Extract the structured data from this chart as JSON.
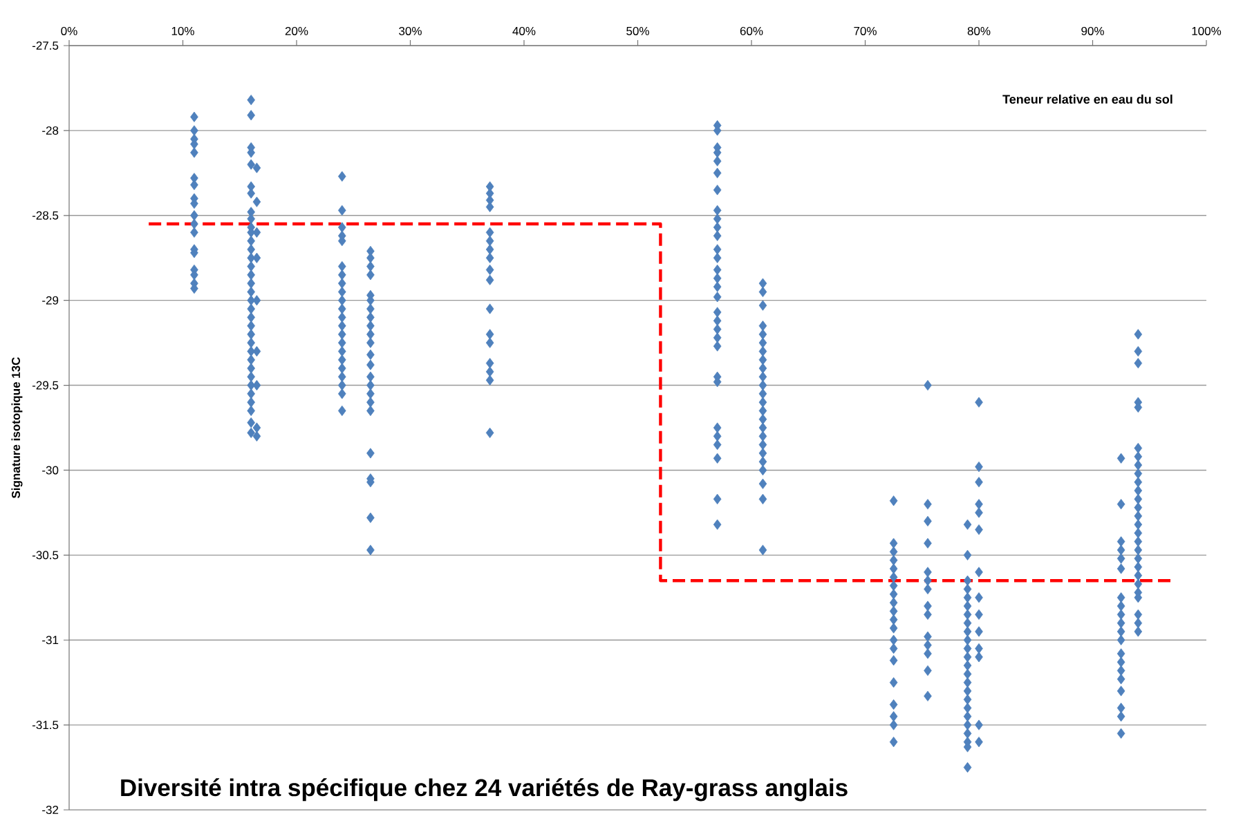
{
  "chart_data": {
    "type": "scatter",
    "title": "Diversité intra spécifique chez 24 variétés de Ray-grass anglais",
    "xlabel": "Teneur relative en eau du sol",
    "ylabel": "Signature isotopique 13C",
    "xlim": [
      0,
      100
    ],
    "xticks": [
      {
        "value": 0,
        "label": "0%"
      },
      {
        "value": 10,
        "label": "10%"
      },
      {
        "value": 20,
        "label": "20%"
      },
      {
        "value": 30,
        "label": "30%"
      },
      {
        "value": 40,
        "label": "40%"
      },
      {
        "value": 50,
        "label": "50%"
      },
      {
        "value": 60,
        "label": "60%"
      },
      {
        "value": 70,
        "label": "70%"
      },
      {
        "value": 80,
        "label": "80%"
      },
      {
        "value": 90,
        "label": "90%"
      },
      {
        "value": 100,
        "label": "100%"
      }
    ],
    "ylim": [
      -32,
      -27.5
    ],
    "yticks": [
      -32,
      -31.5,
      -31,
      -30.5,
      -30,
      -29.5,
      -29,
      -28.5,
      -28,
      -27.5
    ],
    "grid": "y",
    "marker": "diamond",
    "series": [
      {
        "color": "#4f81bd",
        "x": [
          11,
          11,
          11,
          11,
          11,
          11,
          11,
          11,
          11,
          11,
          11,
          11,
          11,
          11,
          11,
          11,
          11,
          11
        ],
        "values": [
          -27.92,
          -28.0,
          -28.05,
          -28.08,
          -28.13,
          -28.28,
          -28.32,
          -28.4,
          -28.43,
          -28.5,
          -28.55,
          -28.6,
          -28.7,
          -28.72,
          -28.82,
          -28.85,
          -28.9,
          -28.93
        ]
      },
      {
        "color": "#4f81bd",
        "x": [
          16,
          16,
          16,
          16,
          16,
          16,
          16,
          16,
          16,
          16,
          16,
          16,
          16,
          16,
          16,
          16,
          16,
          16,
          16,
          16,
          16,
          16,
          16,
          16,
          16,
          16,
          16,
          16,
          16,
          16,
          16,
          16,
          16,
          16
        ],
        "values": [
          -27.82,
          -27.91,
          -28.1,
          -28.13,
          -28.2,
          -28.33,
          -28.37,
          -28.48,
          -28.52,
          -28.57,
          -28.6,
          -28.65,
          -28.7,
          -28.75,
          -28.8,
          -28.85,
          -28.9,
          -28.95,
          -29.0,
          -29.05,
          -29.1,
          -29.15,
          -29.2,
          -29.25,
          -29.3,
          -29.35,
          -29.4,
          -29.45,
          -29.5,
          -29.55,
          -29.6,
          -29.65,
          -29.72,
          -29.78
        ]
      },
      {
        "color": "#4f81bd",
        "x": [
          16.5,
          16.5,
          16.5,
          16.5,
          16.5,
          16.5,
          16.5,
          16.5,
          16.5
        ],
        "values": [
          -28.22,
          -28.42,
          -28.6,
          -28.75,
          -29.0,
          -29.3,
          -29.5,
          -29.75,
          -29.8
        ]
      },
      {
        "color": "#4f81bd",
        "x": [
          24,
          24,
          24,
          24,
          24,
          24,
          24,
          24,
          24,
          24,
          24,
          24,
          24,
          24,
          24,
          24,
          24,
          24,
          24,
          24,
          24,
          24
        ],
        "values": [
          -28.27,
          -28.47,
          -28.57,
          -28.62,
          -28.65,
          -28.8,
          -28.85,
          -28.9,
          -28.95,
          -29.0,
          -29.05,
          -29.1,
          -29.15,
          -29.2,
          -29.25,
          -29.3,
          -29.35,
          -29.4,
          -29.45,
          -29.5,
          -29.55,
          -29.65
        ]
      },
      {
        "color": "#4f81bd",
        "x": [
          26.5,
          26.5,
          26.5,
          26.5,
          26.5,
          26.5,
          26.5,
          26.5,
          26.5,
          26.5,
          26.5,
          26.5,
          26.5,
          26.5,
          26.5,
          26.5,
          26.5,
          26.5,
          26.5,
          26.5,
          26.5,
          26.5,
          26.5
        ],
        "values": [
          -28.71,
          -28.75,
          -28.8,
          -28.85,
          -28.97,
          -29.0,
          -29.05,
          -29.1,
          -29.15,
          -29.2,
          -29.25,
          -29.32,
          -29.38,
          -29.45,
          -29.5,
          -29.55,
          -29.6,
          -29.65,
          -29.9,
          -30.05,
          -30.07,
          -30.28,
          -30.47
        ]
      },
      {
        "color": "#4f81bd",
        "x": [
          37,
          37,
          37,
          37,
          37,
          37,
          37,
          37,
          37,
          37,
          37,
          37,
          37,
          37,
          37,
          37,
          37
        ],
        "values": [
          -28.33,
          -28.37,
          -28.41,
          -28.45,
          -28.6,
          -28.65,
          -28.7,
          -28.75,
          -28.82,
          -28.88,
          -29.05,
          -29.2,
          -29.25,
          -29.37,
          -29.42,
          -29.47,
          -29.78
        ]
      },
      {
        "color": "#4f81bd",
        "x": [
          57,
          57,
          57,
          57,
          57,
          57,
          57,
          57,
          57,
          57,
          57,
          57,
          57,
          57,
          57,
          57,
          57,
          57,
          57,
          57,
          57,
          57,
          57,
          57,
          57,
          57,
          57,
          57,
          57,
          57
        ],
        "values": [
          -27.97,
          -28.0,
          -28.1,
          -28.13,
          -28.18,
          -28.25,
          -28.35,
          -28.47,
          -28.52,
          -28.57,
          -28.62,
          -28.7,
          -28.75,
          -28.82,
          -28.87,
          -28.92,
          -28.98,
          -29.07,
          -29.12,
          -29.17,
          -29.22,
          -29.27,
          -29.45,
          -29.48,
          -29.75,
          -29.8,
          -29.85,
          -29.93,
          -30.17,
          -30.32
        ]
      },
      {
        "color": "#4f81bd",
        "x": [
          61,
          61,
          61,
          61,
          61,
          61,
          61,
          61,
          61,
          61,
          61,
          61,
          61,
          61,
          61,
          61,
          61,
          61,
          61,
          61,
          61,
          61,
          61,
          61
        ],
        "values": [
          -28.9,
          -28.95,
          -29.03,
          -29.15,
          -29.2,
          -29.25,
          -29.3,
          -29.35,
          -29.4,
          -29.45,
          -29.5,
          -29.55,
          -29.6,
          -29.65,
          -29.7,
          -29.75,
          -29.8,
          -29.85,
          -29.9,
          -29.95,
          -30.0,
          -30.08,
          -30.17,
          -30.47
        ]
      },
      {
        "color": "#4f81bd",
        "x": [
          72.5,
          72.5,
          72.5,
          72.5,
          72.5,
          72.5,
          72.5,
          72.5,
          72.5,
          72.5,
          72.5,
          72.5,
          72.5,
          72.5,
          72.5,
          72.5,
          72.5,
          72.5,
          72.5,
          72.5
        ],
        "values": [
          -30.18,
          -30.43,
          -30.48,
          -30.53,
          -30.58,
          -30.63,
          -30.68,
          -30.73,
          -30.78,
          -30.83,
          -30.88,
          -30.93,
          -31.0,
          -31.05,
          -31.12,
          -31.25,
          -31.38,
          -31.45,
          -31.5,
          -31.6
        ]
      },
      {
        "color": "#4f81bd",
        "x": [
          75.5,
          75.5,
          75.5,
          75.5,
          75.5,
          75.5,
          75.5,
          75.5,
          75.5,
          75.5,
          75.5,
          75.5,
          75.5,
          75.5
        ],
        "values": [
          -29.5,
          -30.2,
          -30.3,
          -30.43,
          -30.6,
          -30.65,
          -30.7,
          -30.8,
          -30.85,
          -30.98,
          -31.03,
          -31.08,
          -31.18,
          -31.33
        ]
      },
      {
        "color": "#4f81bd",
        "x": [
          79,
          79,
          79,
          79,
          79,
          79,
          79,
          79,
          79,
          79,
          79,
          79,
          79,
          79,
          79,
          79,
          79,
          79,
          79,
          79,
          79,
          79,
          79,
          79
        ],
        "values": [
          -30.32,
          -30.5,
          -30.65,
          -30.7,
          -30.75,
          -30.8,
          -30.85,
          -30.9,
          -30.95,
          -31.0,
          -31.05,
          -31.1,
          -31.15,
          -31.2,
          -31.25,
          -31.3,
          -31.35,
          -31.4,
          -31.45,
          -31.5,
          -31.55,
          -31.6,
          -31.63,
          -31.75
        ]
      },
      {
        "color": "#4f81bd",
        "x": [
          80,
          80,
          80,
          80,
          80,
          80,
          80,
          80,
          80,
          80,
          80,
          80,
          80,
          80
        ],
        "values": [
          -29.6,
          -29.98,
          -30.07,
          -30.2,
          -30.25,
          -30.35,
          -30.6,
          -30.75,
          -30.85,
          -30.95,
          -31.05,
          -31.1,
          -31.5,
          -31.6
        ]
      },
      {
        "color": "#4f81bd",
        "x": [
          92.5,
          92.5,
          92.5,
          92.5,
          92.5,
          92.5,
          92.5,
          92.5,
          92.5,
          92.5,
          92.5,
          92.5,
          92.5,
          92.5,
          92.5,
          92.5,
          92.5,
          92.5,
          92.5,
          92.5
        ],
        "values": [
          -29.93,
          -30.2,
          -30.42,
          -30.47,
          -30.52,
          -30.58,
          -30.75,
          -30.8,
          -30.85,
          -30.9,
          -30.95,
          -31.0,
          -31.08,
          -31.13,
          -31.18,
          -31.23,
          -31.3,
          -31.4,
          -31.45,
          -31.55
        ]
      },
      {
        "color": "#4f81bd",
        "x": [
          94,
          94,
          94,
          94,
          94,
          94,
          94,
          94,
          94,
          94,
          94,
          94,
          94,
          94,
          94,
          94,
          94,
          94,
          94,
          94,
          94,
          94,
          94,
          94,
          94,
          94,
          94
        ],
        "values": [
          -29.2,
          -29.3,
          -29.37,
          -29.6,
          -29.63,
          -29.87,
          -29.92,
          -29.97,
          -30.02,
          -30.07,
          -30.12,
          -30.17,
          -30.22,
          -30.27,
          -30.32,
          -30.37,
          -30.42,
          -30.47,
          -30.52,
          -30.57,
          -30.62,
          -30.67,
          -30.72,
          -30.75,
          -30.85,
          -30.9,
          -30.95
        ]
      },
      {
        "type": "line",
        "color": "#ff0000",
        "line_style": "dashed",
        "marker": "none",
        "x": [
          7,
          52,
          52,
          97
        ],
        "values": [
          -28.55,
          -28.55,
          -30.65,
          -30.65
        ]
      }
    ]
  }
}
